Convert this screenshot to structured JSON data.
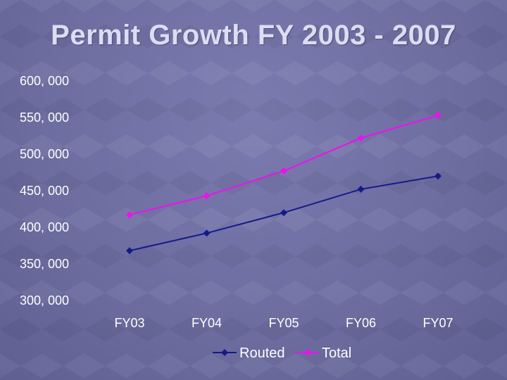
{
  "title": "Permit Growth FY 2003 - 2007",
  "colors": {
    "routed": "#141a8a",
    "total": "#ee10ee"
  },
  "chart_data": {
    "type": "line",
    "title": "Permit Growth FY 2003 - 2007",
    "xlabel": "",
    "ylabel": "",
    "categories": [
      "FY03",
      "FY04",
      "FY05",
      "FY06",
      "FY07"
    ],
    "ylim": [
      300000,
      600000
    ],
    "yticks": [
      600000,
      550000,
      500000,
      450000,
      400000,
      350000,
      300000
    ],
    "ytick_labels": [
      "600, 000",
      "550, 000",
      "500, 000",
      "450, 000",
      "400, 000",
      "350, 000",
      "300, 000"
    ],
    "grid": false,
    "legend_position": "bottom",
    "series": [
      {
        "name": "Routed",
        "values": [
          368000,
          392000,
          420000,
          452000,
          470000
        ]
      },
      {
        "name": "Total",
        "values": [
          417000,
          443000,
          477000,
          522000,
          553000
        ]
      }
    ]
  }
}
